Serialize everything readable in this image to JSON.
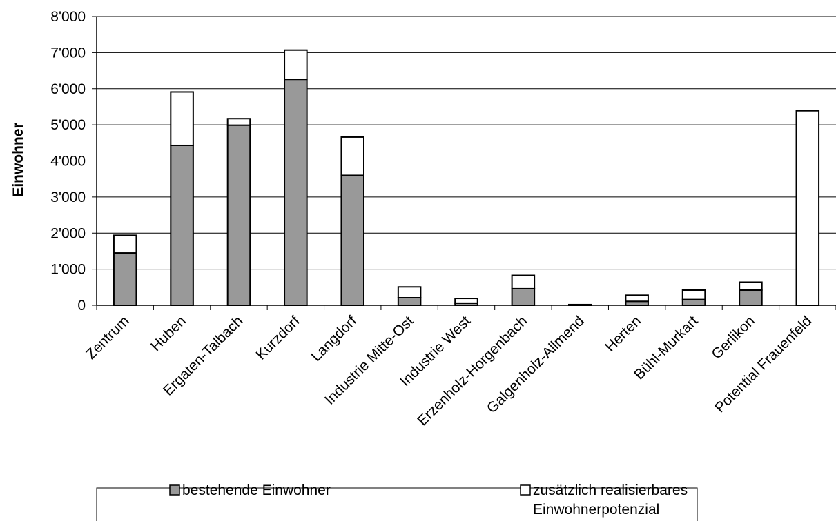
{
  "chart_data": {
    "type": "bar",
    "stacked": true,
    "categories": [
      "Zentrum",
      "Huben",
      "Ergaten-Talbach",
      "Kurzdorf",
      "Langdorf",
      "Industrie Mitte-Ost",
      "Industrie West",
      "Erzenholz-Horgenbach",
      "Galgenholz-Allmend",
      "Herten",
      "Bühl-Murkart",
      "Gerlikon",
      "Potential Frauenfeld"
    ],
    "series": [
      {
        "name": "bestehende Einwohner",
        "color": "#999999",
        "values": [
          1450,
          4430,
          4990,
          6260,
          3600,
          210,
          60,
          460,
          0,
          110,
          160,
          420,
          0
        ]
      },
      {
        "name": "zusätzlich realisierbares Einwohnerpotenzial",
        "color": "#ffffff",
        "values": [
          490,
          1480,
          180,
          810,
          1060,
          300,
          130,
          370,
          20,
          170,
          260,
          220,
          5390
        ]
      }
    ],
    "ylabel": "Einwohner",
    "ylim": [
      0,
      8000
    ],
    "yticks": [
      0,
      1000,
      2000,
      3000,
      4000,
      5000,
      6000,
      7000,
      8000
    ],
    "ytick_labels": [
      "0",
      "1'000",
      "2'000",
      "3'000",
      "4'000",
      "5'000",
      "6'000",
      "7'000",
      "8'000"
    ],
    "grid": true,
    "legend_position": "bottom"
  },
  "legend": {
    "item1": "bestehende Einwohner",
    "item2_line1": "zusätzlich realisierbares",
    "item2_line2": "Einwohnerpotenzial"
  }
}
